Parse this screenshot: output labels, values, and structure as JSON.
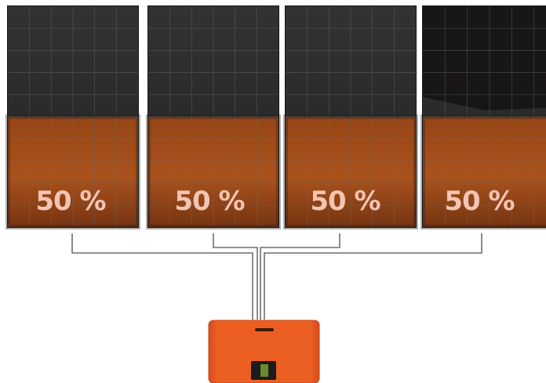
{
  "panels": [
    {
      "label": "50 %",
      "lit_fraction": 0.5
    },
    {
      "label": "50 %",
      "lit_fraction": 0.5
    },
    {
      "label": "50 %",
      "lit_fraction": 0.5
    },
    {
      "label": "50 %",
      "lit_fraction": 0.5
    }
  ],
  "colors": {
    "panel_dark": "#2b2a2b",
    "panel_shade": "#141313",
    "panel_grid": "#6a6a6c",
    "panel_lit": "#a34b16",
    "wire": "#6e6e70",
    "inverter": "#e75a1f",
    "inverter_edge": "#c7461a",
    "label": "#f4c4b2"
  }
}
